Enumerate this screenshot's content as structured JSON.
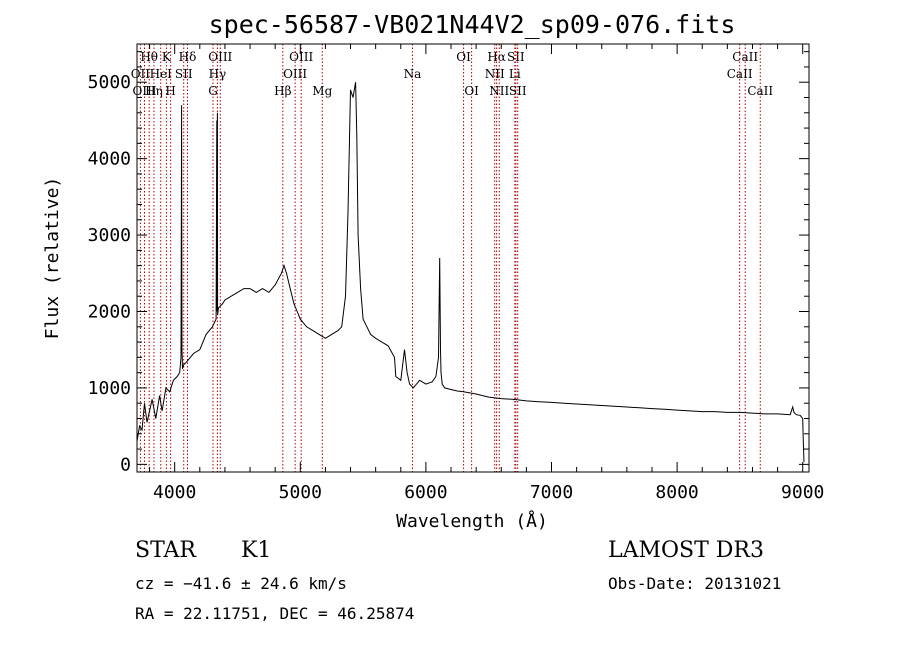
{
  "chart_data": {
    "type": "line",
    "title": "spec-56587-VB021N44V2_sp09-076.fits",
    "xlabel": "Wavelength (Å)",
    "ylabel": "Flux (relative)",
    "xlim": [
      3700,
      9050
    ],
    "ylim": [
      -100,
      5500
    ],
    "xticks": [
      4000,
      5000,
      6000,
      7000,
      8000,
      9000
    ],
    "yticks": [
      0,
      1000,
      2000,
      3000,
      4000,
      5000
    ],
    "series": [
      {
        "name": "spectrum",
        "x": [
          3700,
          3720,
          3740,
          3760,
          3780,
          3800,
          3820,
          3850,
          3880,
          3900,
          3930,
          3960,
          3990,
          4020,
          4040,
          4050,
          4055,
          4058,
          4062,
          4070,
          4100,
          4150,
          4200,
          4250,
          4300,
          4330,
          4335,
          4338,
          4340,
          4342,
          4345,
          4350,
          4380,
          4400,
          4450,
          4500,
          4550,
          4600,
          4650,
          4700,
          4750,
          4800,
          4850,
          4870,
          4890,
          4920,
          4950,
          5000,
          5050,
          5100,
          5150,
          5200,
          5250,
          5300,
          5330,
          5360,
          5380,
          5400,
          5420,
          5440,
          5450,
          5460,
          5480,
          5500,
          5530,
          5560,
          5600,
          5650,
          5700,
          5750,
          5760,
          5800,
          5830,
          5850,
          5870,
          5900,
          5950,
          6000,
          6050,
          6080,
          6100,
          6110,
          6116,
          6120,
          6130,
          6150,
          6200,
          6250,
          6300,
          6400,
          6500,
          6600,
          6700,
          6800,
          6900,
          7000,
          7100,
          7200,
          7300,
          7400,
          7500,
          7600,
          7700,
          7800,
          7900,
          8000,
          8100,
          8200,
          8300,
          8400,
          8500,
          8600,
          8700,
          8800,
          8900,
          8920,
          8930,
          8950,
          8980,
          9000,
          9005,
          9010
        ],
        "values": [
          300,
          500,
          450,
          800,
          550,
          700,
          850,
          600,
          900,
          700,
          1000,
          950,
          1100,
          1150,
          1200,
          1400,
          4700,
          1500,
          1250,
          1300,
          1350,
          1450,
          1500,
          1700,
          1800,
          1900,
          4500,
          2000,
          4600,
          1950,
          2000,
          2050,
          2100,
          2150,
          2200,
          2250,
          2300,
          2300,
          2250,
          2300,
          2250,
          2350,
          2500,
          2600,
          2500,
          2300,
          2100,
          1900,
          1800,
          1750,
          1700,
          1650,
          1700,
          1750,
          1800,
          2200,
          3300,
          4900,
          4800,
          5000,
          4300,
          3000,
          2300,
          1900,
          1800,
          1700,
          1650,
          1600,
          1550,
          1400,
          1150,
          1100,
          1500,
          1200,
          1050,
          1000,
          1100,
          1050,
          1080,
          1150,
          1400,
          2700,
          1500,
          1200,
          1050,
          1000,
          980,
          960,
          950,
          920,
          880,
          860,
          850,
          830,
          820,
          810,
          800,
          790,
          780,
          770,
          760,
          750,
          740,
          730,
          720,
          710,
          700,
          690,
          690,
          680,
          680,
          670,
          660,
          660,
          650,
          750,
          680,
          650,
          640,
          600,
          300,
          30
        ]
      }
    ],
    "line_markers": [
      {
        "label": "Hθ",
        "x": 3797,
        "row": 1
      },
      {
        "label": "OII",
        "x": 3727,
        "row": 2
      },
      {
        "label": "OIII",
        "x": 3760,
        "row": 3
      },
      {
        "label": "Hη",
        "x": 3835,
        "row": 3
      },
      {
        "label": "K",
        "x": 3934,
        "row": 1
      },
      {
        "label": "HeI",
        "x": 3889,
        "row": 2
      },
      {
        "label": "SII",
        "x": 4072,
        "row": 2
      },
      {
        "label": "H",
        "x": 3968,
        "row": 3
      },
      {
        "label": "Hδ",
        "x": 4102,
        "row": 1
      },
      {
        "label": "OIII",
        "x": 4363,
        "row": 1
      },
      {
        "label": "Hγ",
        "x": 4340,
        "row": 2
      },
      {
        "label": "G",
        "x": 4305,
        "row": 3
      },
      {
        "label": "OIII",
        "x": 5007,
        "row": 1
      },
      {
        "label": "OIII",
        "x": 4959,
        "row": 2
      },
      {
        "label": "Hβ",
        "x": 4861,
        "row": 3
      },
      {
        "label": "Mg",
        "x": 5175,
        "row": 3
      },
      {
        "label": "Na",
        "x": 5893,
        "row": 2
      },
      {
        "label": "OI",
        "x": 6300,
        "row": 1
      },
      {
        "label": "OI",
        "x": 6364,
        "row": 3
      },
      {
        "label": "Hα",
        "x": 6563,
        "row": 1
      },
      {
        "label": "SII",
        "x": 6716,
        "row": 1
      },
      {
        "label": "NII",
        "x": 6548,
        "row": 2
      },
      {
        "label": "Li",
        "x": 6708,
        "row": 2
      },
      {
        "label": "NII",
        "x": 6584,
        "row": 3
      },
      {
        "label": "SII",
        "x": 6731,
        "row": 3
      },
      {
        "label": "CaII",
        "x": 8542,
        "row": 1
      },
      {
        "label": "CaII",
        "x": 8498,
        "row": 2
      },
      {
        "label": "CaII",
        "x": 8662,
        "row": 3
      }
    ]
  },
  "info": {
    "object_class": "STAR",
    "subclass": "K1",
    "survey": "LAMOST DR3",
    "cz": "cz = −41.6 ± 24.6 km/s",
    "obs_date": "Obs-Date: 20131021",
    "coords": "RA =  22.11751, DEC =  46.25874"
  }
}
